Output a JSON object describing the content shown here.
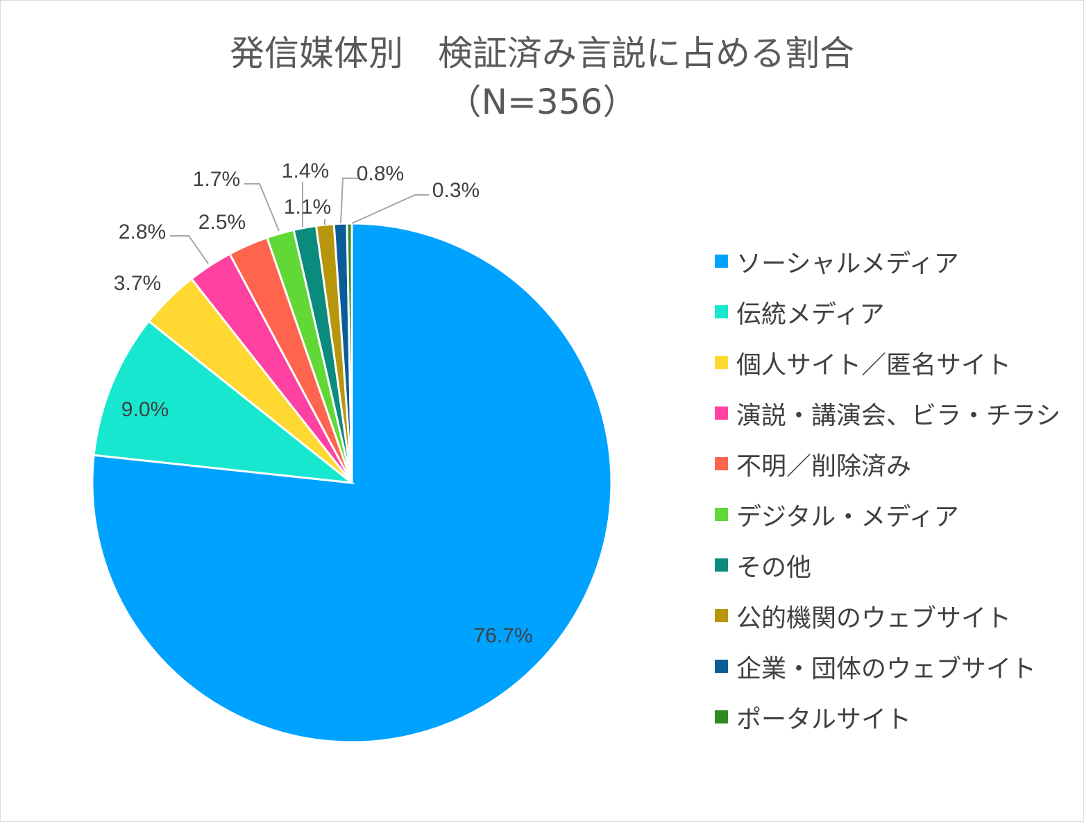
{
  "chart_data": {
    "type": "pie",
    "title": "発信媒体別　検証済み言説に占める割合",
    "subtitle": "（N=356）",
    "legend_position": "right",
    "start_angle_deg": 0,
    "direction": "clockwise",
    "slices": [
      {
        "name": "ソーシャルメディア",
        "value": 76.7,
        "label": "76.7%",
        "color": "#00A2FF"
      },
      {
        "name": "伝統メディア",
        "value": 9.0,
        "label": "9.0%",
        "color": "#18E7CF"
      },
      {
        "name": "個人サイト／匿名サイト",
        "value": 3.7,
        "label": "3.7%",
        "color": "#FFD932"
      },
      {
        "name": "演説・講演会、ビラ・チラシ",
        "value": 2.8,
        "label": "2.8%",
        "color": "#FF42A1"
      },
      {
        "name": "不明／削除済み",
        "value": 2.5,
        "label": "2.5%",
        "color": "#FF644E"
      },
      {
        "name": "デジタル・メディア",
        "value": 1.7,
        "label": "1.7%",
        "color": "#61D836"
      },
      {
        "name": "その他",
        "value": 1.4,
        "label": "1.4%",
        "color": "#0B8A7E"
      },
      {
        "name": "公的機関のウェブサイト",
        "value": 1.1,
        "label": "1.1%",
        "color": "#B8960B"
      },
      {
        "name": "企業・団体のウェブサイト",
        "value": 0.8,
        "label": "0.8%",
        "color": "#0A5C99"
      },
      {
        "name": "ポータルサイト",
        "value": 0.3,
        "label": "0.3%",
        "color": "#2E8B1F"
      }
    ]
  }
}
